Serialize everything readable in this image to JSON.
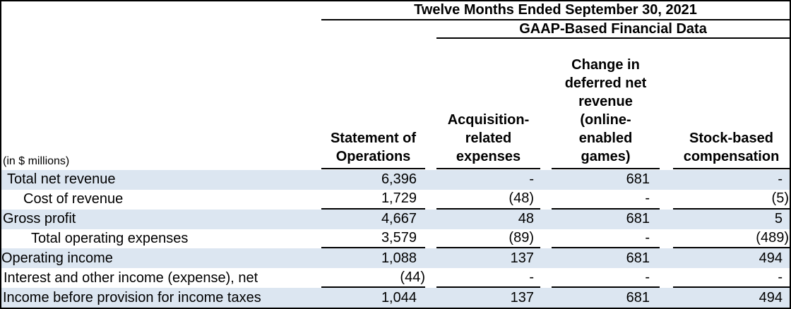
{
  "table": {
    "period_header": "Twelve Months Ended September 30, 2021",
    "group_header": "GAAP-Based Financial Data",
    "units_label": "(in $ millions)",
    "columns": [
      {
        "label": "Statement of\nOperations"
      },
      {
        "label": "Acquisition-\nrelated\nexpenses"
      },
      {
        "label": "Change in\ndeferred net\nrevenue\n(online-\nenabled\ngames)"
      },
      {
        "label": "Stock-based\ncompensation"
      }
    ],
    "rows": [
      {
        "label": "Total net revenue",
        "values": [
          "6,396",
          "-",
          "681",
          "-"
        ]
      },
      {
        "label": "Cost of revenue",
        "values": [
          "1,729",
          "(48)",
          "-",
          "(5)"
        ]
      },
      {
        "label": "Gross profit",
        "values": [
          "4,667",
          "48",
          "681",
          "5"
        ]
      },
      {
        "label": "Total operating expenses",
        "values": [
          "3,579",
          "(89)",
          "-",
          "(489)"
        ]
      },
      {
        "label": "Operating income",
        "values": [
          "1,088",
          "137",
          "681",
          "494"
        ]
      },
      {
        "label": "Interest and other income (expense), net",
        "values": [
          "(44)",
          "-",
          "-",
          "-"
        ]
      },
      {
        "label": "Income before provision for income taxes",
        "values": [
          "1,044",
          "137",
          "681",
          "494"
        ]
      }
    ],
    "colors": {
      "band": "#DCE6F1",
      "line": "#000000",
      "text": "#000000"
    }
  }
}
